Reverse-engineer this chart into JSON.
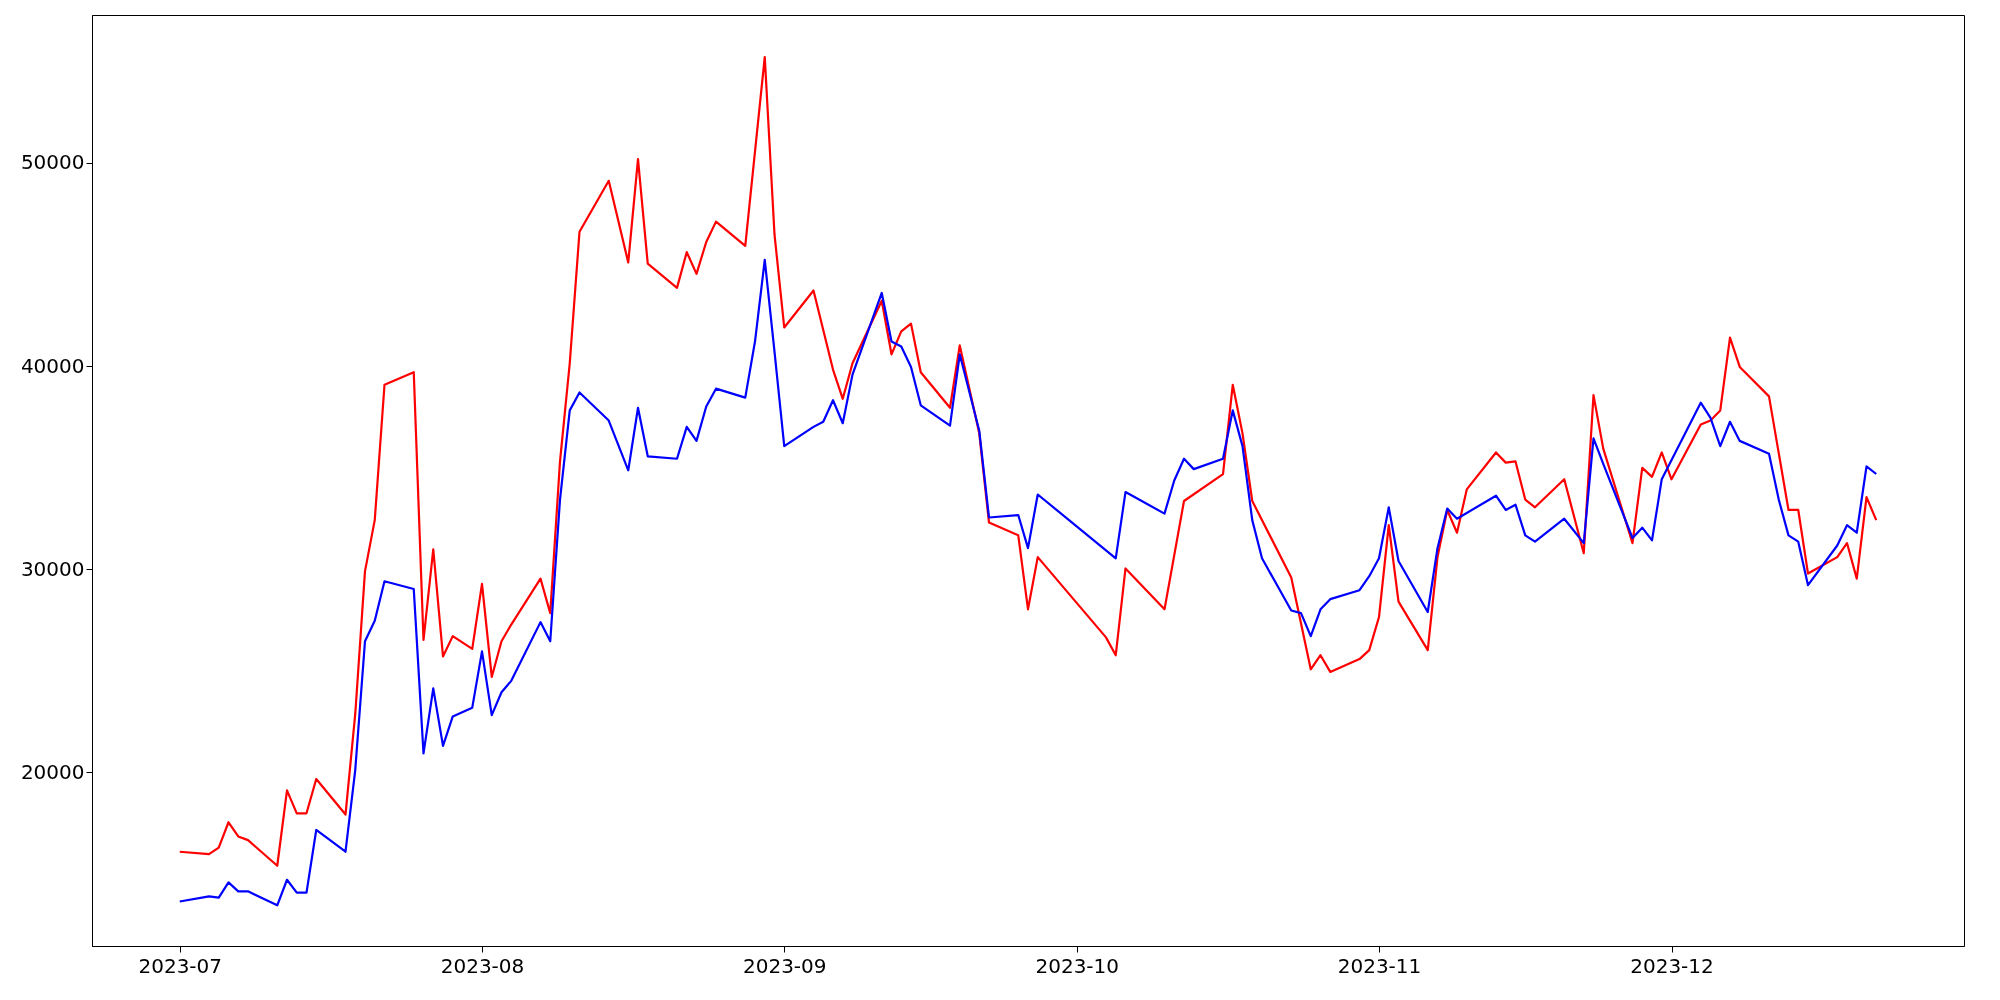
{
  "chart_data": {
    "type": "line",
    "xlim": [
      "2023-06-22",
      "2023-12-31"
    ],
    "xticks": [
      "2023-07",
      "2023-08",
      "2023-09",
      "2023-10",
      "2023-11",
      "2023-12"
    ],
    "ylim": [
      11460,
      57280
    ],
    "yticks": [
      20000,
      30000,
      40000,
      50000
    ],
    "grid": false,
    "legend": false,
    "line_style": "solid",
    "marker": "none",
    "series": [
      {
        "color": "#ff0000",
        "x": [
          "2023-07-01",
          "2023-07-04",
          "2023-07-05",
          "2023-07-06",
          "2023-07-07",
          "2023-07-08",
          "2023-07-11",
          "2023-07-12",
          "2023-07-13",
          "2023-07-14",
          "2023-07-15",
          "2023-07-18",
          "2023-07-19",
          "2023-07-20",
          "2023-07-21",
          "2023-07-22",
          "2023-07-25",
          "2023-07-26",
          "2023-07-27",
          "2023-07-28",
          "2023-07-29",
          "2023-07-31",
          "2023-08-01",
          "2023-08-02",
          "2023-08-03",
          "2023-08-04",
          "2023-08-07",
          "2023-08-08",
          "2023-08-09",
          "2023-08-10",
          "2023-08-11",
          "2023-08-14",
          "2023-08-16",
          "2023-08-17",
          "2023-08-18",
          "2023-08-21",
          "2023-08-22",
          "2023-08-23",
          "2023-08-24",
          "2023-08-25",
          "2023-08-28",
          "2023-08-30",
          "2023-08-31",
          "2023-09-01",
          "2023-09-04",
          "2023-09-06",
          "2023-09-07",
          "2023-09-08",
          "2023-09-11",
          "2023-09-12",
          "2023-09-13",
          "2023-09-14",
          "2023-09-15",
          "2023-09-18",
          "2023-09-19",
          "2023-09-21",
          "2023-09-22",
          "2023-09-25",
          "2023-09-26",
          "2023-09-27",
          "2023-10-04",
          "2023-10-05",
          "2023-10-06",
          "2023-10-10",
          "2023-10-12",
          "2023-10-16",
          "2023-10-17",
          "2023-10-18",
          "2023-10-19",
          "2023-10-23",
          "2023-10-25",
          "2023-10-26",
          "2023-10-27",
          "2023-10-30",
          "2023-10-31",
          "2023-11-01",
          "2023-11-02",
          "2023-11-03",
          "2023-11-06",
          "2023-11-07",
          "2023-11-08",
          "2023-11-09",
          "2023-11-10",
          "2023-11-13",
          "2023-11-14",
          "2023-11-15",
          "2023-11-16",
          "2023-11-17",
          "2023-11-20",
          "2023-11-22",
          "2023-11-23",
          "2023-11-24",
          "2023-11-27",
          "2023-11-28",
          "2023-11-29",
          "2023-11-30",
          "2023-12-01",
          "2023-12-04",
          "2023-12-05",
          "2023-12-06",
          "2023-12-07",
          "2023-12-08",
          "2023-12-11",
          "2023-12-13",
          "2023-12-14",
          "2023-12-15",
          "2023-12-18",
          "2023-12-19",
          "2023-12-20",
          "2023-12-21",
          "2023-12-22"
        ],
        "values": [
          16100,
          15980,
          16300,
          17550,
          16850,
          16670,
          15410,
          19120,
          17990,
          17990,
          19680,
          17930,
          22880,
          29910,
          32420,
          39080,
          39700,
          26520,
          30980,
          25710,
          26710,
          26080,
          29280,
          24700,
          26460,
          27280,
          29540,
          27840,
          35310,
          40140,
          46610,
          49120,
          45100,
          50190,
          45040,
          43850,
          45610,
          44540,
          46110,
          47110,
          45920,
          55210,
          46480,
          41900,
          43720,
          39830,
          38390,
          40140,
          43220,
          40580,
          41710,
          42090,
          39700,
          37950,
          41020,
          36690,
          32300,
          31670,
          28030,
          30600,
          26650,
          25770,
          30040,
          28030,
          33360,
          34680,
          39080,
          36690,
          33360,
          29600,
          25080,
          25770,
          24950,
          25580,
          26020,
          27650,
          32170,
          28410,
          26020,
          30600,
          32920,
          31800,
          33930,
          35750,
          35250,
          35310,
          33430,
          33050,
          34430,
          30790,
          38570,
          35940,
          31290,
          34990,
          34550,
          35750,
          34430,
          37130,
          37320,
          37820,
          41400,
          39960,
          38510,
          32920,
          32920,
          29790,
          30600,
          31290,
          29540,
          33550,
          32420
        ]
      },
      {
        "color": "#0000ff",
        "x": [
          "2023-07-01",
          "2023-07-04",
          "2023-07-05",
          "2023-07-06",
          "2023-07-07",
          "2023-07-08",
          "2023-07-11",
          "2023-07-12",
          "2023-07-13",
          "2023-07-14",
          "2023-07-15",
          "2023-07-18",
          "2023-07-19",
          "2023-07-20",
          "2023-07-21",
          "2023-07-22",
          "2023-07-25",
          "2023-07-26",
          "2023-07-27",
          "2023-07-28",
          "2023-07-29",
          "2023-07-31",
          "2023-08-01",
          "2023-08-02",
          "2023-08-03",
          "2023-08-04",
          "2023-08-07",
          "2023-08-08",
          "2023-08-09",
          "2023-08-10",
          "2023-08-11",
          "2023-08-14",
          "2023-08-16",
          "2023-08-17",
          "2023-08-18",
          "2023-08-21",
          "2023-08-22",
          "2023-08-23",
          "2023-08-24",
          "2023-08-25",
          "2023-08-28",
          "2023-08-29",
          "2023-08-30",
          "2023-08-31",
          "2023-09-01",
          "2023-09-04",
          "2023-09-05",
          "2023-09-06",
          "2023-09-07",
          "2023-09-08",
          "2023-09-11",
          "2023-09-12",
          "2023-09-13",
          "2023-09-14",
          "2023-09-15",
          "2023-09-18",
          "2023-09-19",
          "2023-09-21",
          "2023-09-22",
          "2023-09-25",
          "2023-09-26",
          "2023-09-27",
          "2023-10-05",
          "2023-10-06",
          "2023-10-10",
          "2023-10-11",
          "2023-10-12",
          "2023-10-13",
          "2023-10-16",
          "2023-10-17",
          "2023-10-18",
          "2023-10-19",
          "2023-10-20",
          "2023-10-23",
          "2023-10-24",
          "2023-10-25",
          "2023-10-26",
          "2023-10-27",
          "2023-10-30",
          "2023-10-31",
          "2023-11-01",
          "2023-11-02",
          "2023-11-03",
          "2023-11-06",
          "2023-11-07",
          "2023-11-08",
          "2023-11-09",
          "2023-11-13",
          "2023-11-14",
          "2023-11-15",
          "2023-11-16",
          "2023-11-17",
          "2023-11-20",
          "2023-11-22",
          "2023-11-23",
          "2023-11-24",
          "2023-11-27",
          "2023-11-28",
          "2023-11-29",
          "2023-11-30",
          "2023-12-04",
          "2023-12-05",
          "2023-12-06",
          "2023-12-07",
          "2023-12-08",
          "2023-12-11",
          "2023-12-12",
          "2023-12-13",
          "2023-12-14",
          "2023-12-15",
          "2023-12-18",
          "2023-12-19",
          "2023-12-20",
          "2023-12-21",
          "2023-12-22"
        ],
        "values": [
          13650,
          13900,
          13840,
          14590,
          14150,
          14150,
          13460,
          14720,
          14090,
          14090,
          17170,
          16100,
          20120,
          26460,
          27470,
          29410,
          29030,
          20940,
          24140,
          21310,
          22760,
          23190,
          25960,
          22820,
          23950,
          24510,
          27400,
          26460,
          33430,
          37820,
          38700,
          37320,
          34870,
          37950,
          35560,
          35440,
          37010,
          36320,
          38010,
          38890,
          38450,
          41210,
          45230,
          40710,
          36060,
          37010,
          37260,
          38320,
          37190,
          39580,
          43600,
          41210,
          40960,
          39960,
          38070,
          37070,
          40580,
          36820,
          32550,
          32670,
          31040,
          33680,
          30540,
          33800,
          32740,
          34370,
          35440,
          34930,
          35440,
          37820,
          36060,
          32420,
          30540,
          27970,
          27840,
          26710,
          28030,
          28530,
          28970,
          29660,
          30540,
          33050,
          30410,
          27900,
          31040,
          32990,
          32490,
          33620,
          32920,
          33180,
          31670,
          31360,
          32490,
          31290,
          36440,
          35190,
          31540,
          32050,
          31420,
          34430,
          38200,
          37450,
          36060,
          37260,
          36320,
          35690,
          33430,
          31670,
          31360,
          29220,
          31170,
          32170,
          31800,
          35060,
          34690
        ]
      }
    ]
  }
}
